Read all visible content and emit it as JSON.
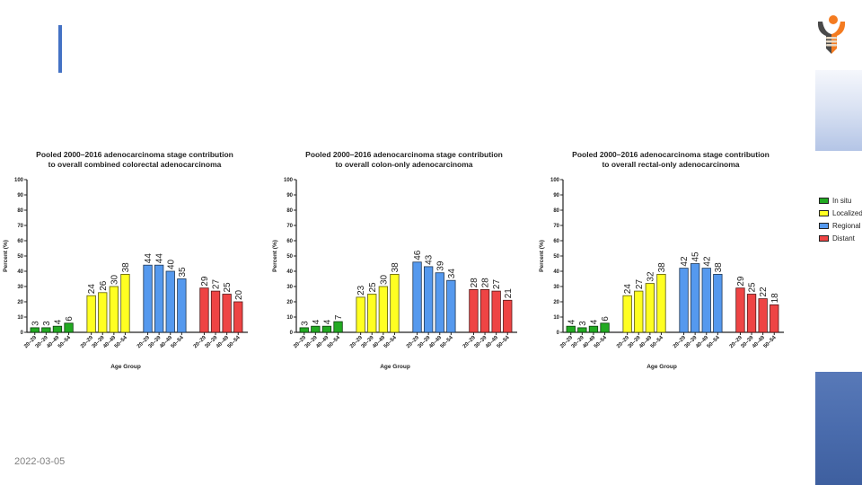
{
  "slide": {
    "date": "2022-03-05"
  },
  "legend": {
    "items": [
      {
        "label": "In situ",
        "color": "#22aa22"
      },
      {
        "label": "Localized",
        "color": "#ffff22"
      },
      {
        "label": "Regional",
        "color": "#5599ee"
      },
      {
        "label": "Distant",
        "color": "#ee4444"
      }
    ]
  },
  "chart_data": [
    {
      "type": "bar",
      "title": "Pooled 2000–2016 adenocarcinoma stage contribution",
      "subtitle": "to overall combined colorectal adenocarcinoma",
      "xlabel": "Age  Group",
      "ylabel": "Percent (%)",
      "ylim": [
        0,
        100
      ],
      "yticks": [
        0,
        10,
        20,
        30,
        40,
        50,
        60,
        70,
        80,
        90,
        100
      ],
      "categories": [
        "20–29",
        "30–39",
        "40–49",
        "50–54"
      ],
      "series": [
        {
          "name": "In situ",
          "color": "#22aa22",
          "values": [
            3,
            3,
            4,
            6
          ]
        },
        {
          "name": "Localized",
          "color": "#ffff22",
          "values": [
            24,
            26,
            30,
            38
          ]
        },
        {
          "name": "Regional",
          "color": "#5599ee",
          "values": [
            44,
            44,
            40,
            35
          ]
        },
        {
          "name": "Distant",
          "color": "#ee4444",
          "values": [
            29,
            27,
            25,
            20
          ]
        }
      ]
    },
    {
      "type": "bar",
      "title": "Pooled 2000–2016 adenocarcinoma stage contribution",
      "subtitle": "to overall colon-only adenocarcinoma",
      "xlabel": "Age  Group",
      "ylabel": "Percent (%)",
      "ylim": [
        0,
        100
      ],
      "yticks": [
        0,
        10,
        20,
        30,
        40,
        50,
        60,
        70,
        80,
        90,
        100
      ],
      "categories": [
        "20–29",
        "30–39",
        "40–49",
        "50–54"
      ],
      "series": [
        {
          "name": "In situ",
          "color": "#22aa22",
          "values": [
            3,
            4,
            4,
            7
          ]
        },
        {
          "name": "Localized",
          "color": "#ffff22",
          "values": [
            23,
            25,
            30,
            38
          ]
        },
        {
          "name": "Regional",
          "color": "#5599ee",
          "values": [
            46,
            43,
            39,
            34
          ]
        },
        {
          "name": "Distant",
          "color": "#ee4444",
          "values": [
            28,
            28,
            27,
            21
          ]
        }
      ]
    },
    {
      "type": "bar",
      "title": "Pooled 2000–2016 adenocarcinoma stage contribution",
      "subtitle": "to overall rectal-only adenocarcinoma",
      "xlabel": "Age  Group",
      "ylabel": "Percent (%)",
      "ylim": [
        0,
        100
      ],
      "yticks": [
        0,
        10,
        20,
        30,
        40,
        50,
        60,
        70,
        80,
        90,
        100
      ],
      "categories": [
        "20–29",
        "30–39",
        "40–49",
        "50–54"
      ],
      "series": [
        {
          "name": "In situ",
          "color": "#22aa22",
          "values": [
            4,
            3,
            4,
            6
          ]
        },
        {
          "name": "Localized",
          "color": "#ffff22",
          "values": [
            24,
            27,
            32,
            38
          ]
        },
        {
          "name": "Regional",
          "color": "#5599ee",
          "values": [
            42,
            45,
            42,
            38
          ]
        },
        {
          "name": "Distant",
          "color": "#ee4444",
          "values": [
            29,
            25,
            22,
            18
          ]
        }
      ]
    }
  ]
}
